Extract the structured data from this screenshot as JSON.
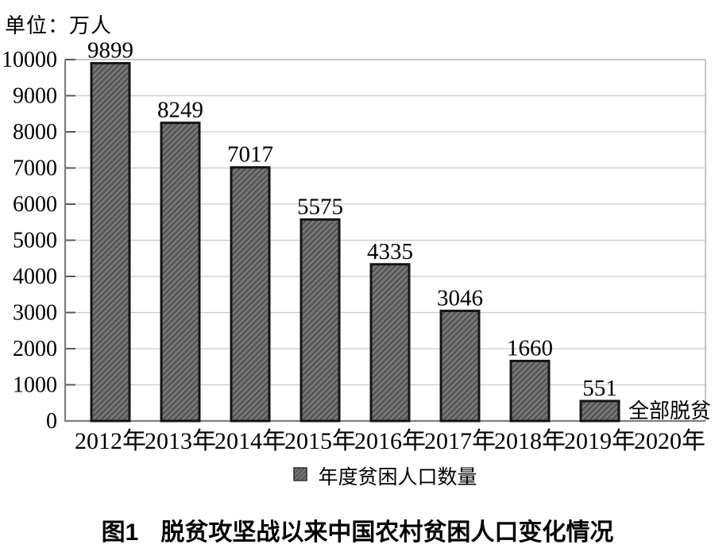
{
  "unit_label": "单位：万人",
  "chart_data": {
    "type": "bar",
    "title": "",
    "categories": [
      "2012年",
      "2013年",
      "2014年",
      "2015年",
      "2016年",
      "2017年",
      "2018年",
      "2019年",
      "2020年"
    ],
    "values": [
      9899,
      8249,
      7017,
      5575,
      4335,
      3046,
      1660,
      551,
      null
    ],
    "annotation": {
      "category_index": 8,
      "text": "全部脱贫"
    },
    "unit": "单位：万人",
    "xlabel": "",
    "ylabel": "",
    "ylim": [
      0,
      10000
    ],
    "ytick_step": 1000,
    "grid": true,
    "legend_position": "bottom",
    "legend_entries": [
      "年度贫困人口数量"
    ],
    "bar_style": "diagonal-hatch",
    "colors": {
      "bar_fill": "#575757",
      "bar_hatch": "#7d7d7d",
      "bar_border": "#141414",
      "gridline": "#c9c9c9",
      "frame": "#b4b4b4",
      "axis": "#7e7e7e",
      "tick": "#595959",
      "text": "#000000"
    }
  },
  "legend": {
    "label": "年度贫困人口数量"
  },
  "caption": {
    "prefix": "图1",
    "text": "脱贫攻坚战以来中国农村贫困人口变化情况"
  }
}
